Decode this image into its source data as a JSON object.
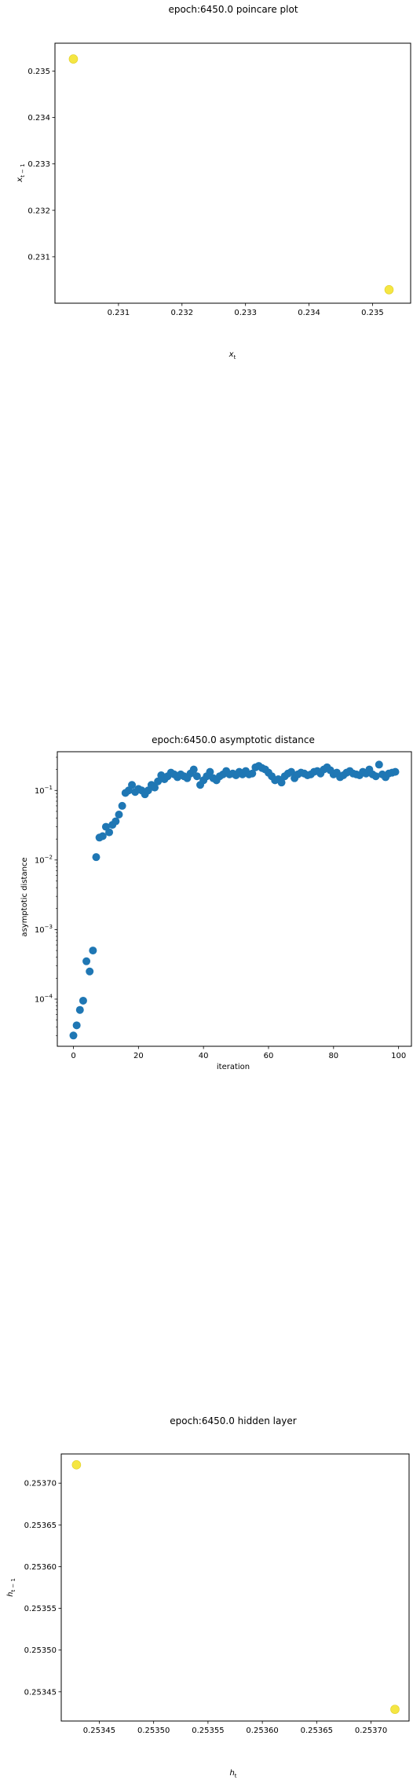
{
  "chart_data": [
    {
      "type": "scatter",
      "title": "epoch:6450.0 poincare plot",
      "xlabel": "x_t",
      "ylabel": "x_{t-1}",
      "xlim": [
        0.23,
        0.2356
      ],
      "ylim": [
        0.23,
        0.2356
      ],
      "xticks": [
        0.231,
        0.232,
        0.233,
        0.234,
        0.235
      ],
      "xtick_labels": [
        "0.231",
        "0.232",
        "0.233",
        "0.234",
        "0.235"
      ],
      "yticks": [
        0.231,
        0.232,
        0.233,
        0.234,
        0.235
      ],
      "ytick_labels": [
        "0.231",
        "0.232",
        "0.233",
        "0.234",
        "0.235"
      ],
      "marker_color": "#f5e642",
      "points": [
        [
          0.23029,
          0.23526
        ],
        [
          0.23526,
          0.23029
        ]
      ],
      "grid": false
    },
    {
      "type": "scatter",
      "title": "epoch:6450.0 asymptotic distance",
      "xlabel": "iteration",
      "ylabel": "asymptotic distance",
      "yscale": "log",
      "xlim": [
        -4.95,
        103.95
      ],
      "ylim": [
        2.1e-05,
        0.36
      ],
      "xticks": [
        0,
        20,
        40,
        60,
        80,
        100
      ],
      "xtick_labels": [
        "0",
        "20",
        "40",
        "60",
        "80",
        "100"
      ],
      "yticks": [
        0.0001,
        0.001,
        0.01,
        0.1
      ],
      "ytick_bases": [
        "10",
        "10",
        "10",
        "10"
      ],
      "ytick_exps": [
        "−4",
        "−3",
        "−2",
        "−1"
      ],
      "marker_color": "#1f77b4",
      "x": [
        0,
        1,
        2,
        3,
        4,
        5,
        6,
        7,
        8,
        9,
        10,
        11,
        12,
        13,
        14,
        15,
        16,
        17,
        18,
        19,
        20,
        21,
        22,
        23,
        24,
        25,
        26,
        27,
        28,
        29,
        30,
        31,
        32,
        33,
        34,
        35,
        36,
        37,
        38,
        39,
        40,
        41,
        42,
        43,
        44,
        45,
        46,
        47,
        48,
        49,
        50,
        51,
        52,
        53,
        54,
        55,
        56,
        57,
        58,
        59,
        60,
        61,
        62,
        63,
        64,
        65,
        66,
        67,
        68,
        69,
        70,
        71,
        72,
        73,
        74,
        75,
        76,
        77,
        78,
        79,
        80,
        81,
        82,
        83,
        84,
        85,
        86,
        87,
        88,
        89,
        90,
        91,
        92,
        93,
        94,
        95,
        96,
        97,
        98,
        99
      ],
      "y": [
        3e-05,
        4.2e-05,
        7e-05,
        9.5e-05,
        0.00035,
        0.00025,
        0.0005,
        0.011,
        0.021,
        0.022,
        0.03,
        0.025,
        0.032,
        0.036,
        0.045,
        0.06,
        0.092,
        0.1,
        0.12,
        0.095,
        0.105,
        0.1,
        0.088,
        0.1,
        0.12,
        0.11,
        0.135,
        0.165,
        0.145,
        0.16,
        0.18,
        0.17,
        0.155,
        0.17,
        0.16,
        0.15,
        0.175,
        0.2,
        0.16,
        0.12,
        0.14,
        0.16,
        0.185,
        0.15,
        0.14,
        0.16,
        0.17,
        0.19,
        0.17,
        0.175,
        0.165,
        0.185,
        0.17,
        0.19,
        0.17,
        0.175,
        0.215,
        0.225,
        0.21,
        0.2,
        0.18,
        0.16,
        0.14,
        0.145,
        0.13,
        0.16,
        0.175,
        0.185,
        0.15,
        0.17,
        0.18,
        0.175,
        0.165,
        0.17,
        0.185,
        0.19,
        0.175,
        0.2,
        0.215,
        0.195,
        0.17,
        0.18,
        0.155,
        0.165,
        0.18,
        0.19,
        0.175,
        0.17,
        0.165,
        0.185,
        0.175,
        0.2,
        0.17,
        0.16,
        0.235,
        0.17,
        0.155,
        0.175,
        0.18,
        0.185
      ],
      "grid": false
    },
    {
      "type": "scatter",
      "title": "epoch:6450.0 hidden layer",
      "xlabel": "h_t",
      "ylabel": "h_{t-1}",
      "xlim": [
        0.253415,
        0.253735
      ],
      "ylim": [
        0.253415,
        0.253735
      ],
      "xticks": [
        0.25345,
        0.2535,
        0.25355,
        0.2536,
        0.25365,
        0.2537
      ],
      "xtick_labels": [
        "0.25345",
        "0.25350",
        "0.25355",
        "0.25360",
        "0.25365",
        "0.25370"
      ],
      "yticks": [
        0.25345,
        0.2535,
        0.25355,
        0.2536,
        0.25365,
        0.2537
      ],
      "ytick_labels": [
        "0.25345",
        "0.25350",
        "0.25355",
        "0.25360",
        "0.25365",
        "0.25370"
      ],
      "marker_color": "#f5e642",
      "points": [
        [
          0.253429,
          0.253722
        ],
        [
          0.253722,
          0.253429
        ]
      ],
      "grid": false
    }
  ]
}
